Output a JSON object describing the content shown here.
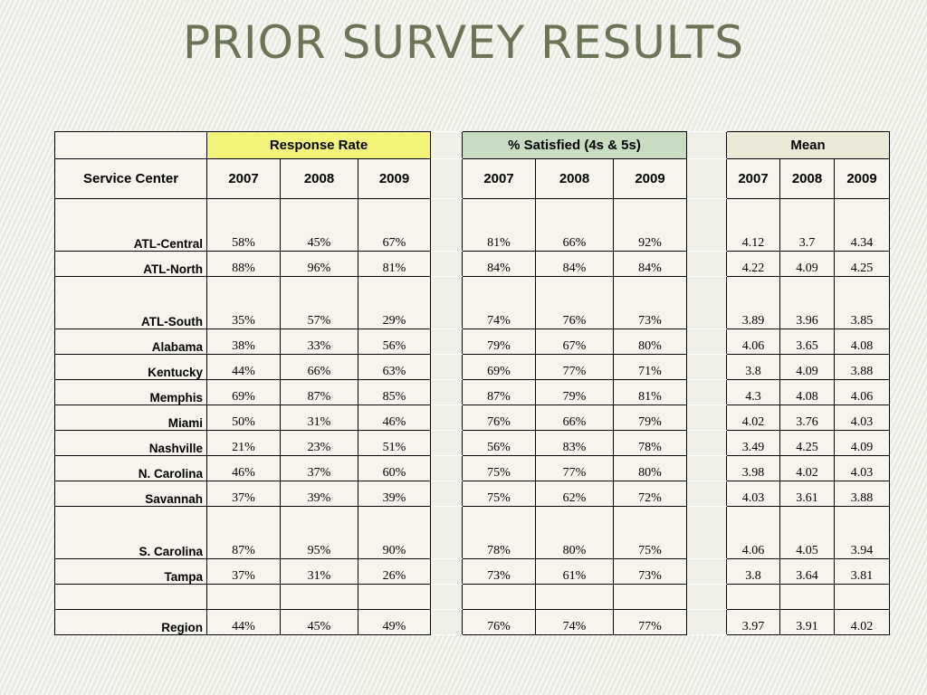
{
  "title": "PRIOR SURVEY RESULTS",
  "groups": {
    "response_rate": "Response Rate",
    "satisfied": "% Satisfied (4s & 5s)",
    "mean": "Mean"
  },
  "service_center_header": "Service Center",
  "years": [
    "2007",
    "2008",
    "2009"
  ],
  "rows": [
    {
      "name": "ATL-Central",
      "tall": true,
      "rr": [
        "58%",
        "45%",
        "67%"
      ],
      "sat": [
        "81%",
        "66%",
        "92%"
      ],
      "mean": [
        "4.12",
        "3.7",
        "4.34"
      ]
    },
    {
      "name": "ATL-North",
      "tall": false,
      "rr": [
        "88%",
        "96%",
        "81%"
      ],
      "sat": [
        "84%",
        "84%",
        "84%"
      ],
      "mean": [
        "4.22",
        "4.09",
        "4.25"
      ]
    },
    {
      "name": "ATL-South",
      "tall": true,
      "rr": [
        "35%",
        "57%",
        "29%"
      ],
      "sat": [
        "74%",
        "76%",
        "73%"
      ],
      "mean": [
        "3.89",
        "3.96",
        "3.85"
      ]
    },
    {
      "name": "Alabama",
      "tall": false,
      "rr": [
        "38%",
        "33%",
        "56%"
      ],
      "sat": [
        "79%",
        "67%",
        "80%"
      ],
      "mean": [
        "4.06",
        "3.65",
        "4.08"
      ]
    },
    {
      "name": "Kentucky",
      "tall": false,
      "rr": [
        "44%",
        "66%",
        "63%"
      ],
      "sat": [
        "69%",
        "77%",
        "71%"
      ],
      "mean": [
        "3.8",
        "4.09",
        "3.88"
      ]
    },
    {
      "name": "Memphis",
      "tall": false,
      "rr": [
        "69%",
        "87%",
        "85%"
      ],
      "sat": [
        "87%",
        "79%",
        "81%"
      ],
      "mean": [
        "4.3",
        "4.08",
        "4.06"
      ]
    },
    {
      "name": "Miami",
      "tall": false,
      "rr": [
        "50%",
        "31%",
        "46%"
      ],
      "sat": [
        "76%",
        "66%",
        "79%"
      ],
      "mean": [
        "4.02",
        "3.76",
        "4.03"
      ]
    },
    {
      "name": "Nashville",
      "tall": false,
      "rr": [
        "21%",
        "23%",
        "51%"
      ],
      "sat": [
        "56%",
        "83%",
        "78%"
      ],
      "mean": [
        "3.49",
        "4.25",
        "4.09"
      ]
    },
    {
      "name": "N. Carolina",
      "tall": false,
      "rr": [
        "46%",
        "37%",
        "60%"
      ],
      "sat": [
        "75%",
        "77%",
        "80%"
      ],
      "mean": [
        "3.98",
        "4.02",
        "4.03"
      ]
    },
    {
      "name": "Savannah",
      "tall": false,
      "rr": [
        "37%",
        "39%",
        "39%"
      ],
      "sat": [
        "75%",
        "62%",
        "72%"
      ],
      "mean": [
        "4.03",
        "3.61",
        "3.88"
      ]
    },
    {
      "name": "S. Carolina",
      "tall": true,
      "rr": [
        "87%",
        "95%",
        "90%"
      ],
      "sat": [
        "78%",
        "80%",
        "75%"
      ],
      "mean": [
        "4.06",
        "4.05",
        "3.94"
      ]
    },
    {
      "name": "Tampa",
      "tall": false,
      "rr": [
        "37%",
        "31%",
        "26%"
      ],
      "sat": [
        "73%",
        "61%",
        "73%"
      ],
      "mean": [
        "3.8",
        "3.64",
        "3.81"
      ]
    }
  ],
  "region": {
    "name": "Region",
    "rr": [
      "44%",
      "45%",
      "49%"
    ],
    "sat": [
      "76%",
      "74%",
      "77%"
    ],
    "mean": [
      "3.97",
      "3.91",
      "4.02"
    ]
  },
  "colors": {
    "title": "#6b7455",
    "response_rate_header": "#f4f37a",
    "satisfied_header": "#c7dcc0",
    "mean_header": "#ebead6",
    "cell_background": "#f6f4ec"
  }
}
